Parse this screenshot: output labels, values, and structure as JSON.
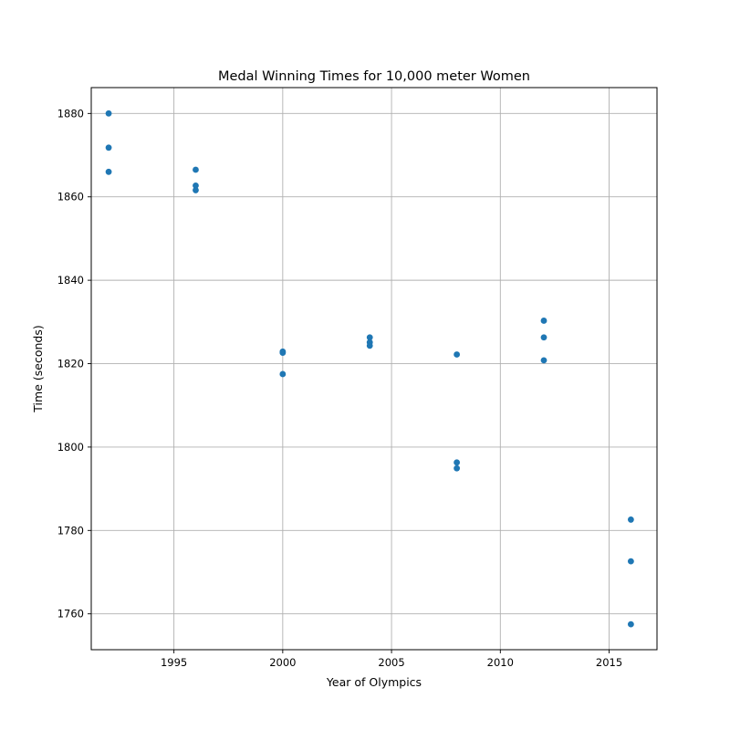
{
  "chart_data": {
    "type": "scatter",
    "title": "Medal Winning Times for 10,000 meter Women",
    "xlabel": "Year of Olympics",
    "ylabel": "Time (seconds)",
    "xlim": [
      1991.2,
      2017.2
    ],
    "ylim": [
      1751.4,
      1886.2
    ],
    "xticks": [
      1995,
      2000,
      2005,
      2010,
      2015
    ],
    "yticks": [
      1760,
      1780,
      1800,
      1820,
      1840,
      1860,
      1880
    ],
    "grid": true,
    "marker_color": "#1f77b4",
    "points": [
      {
        "x": 1992,
        "y": 1880.0
      },
      {
        "x": 1992,
        "y": 1871.8
      },
      {
        "x": 1992,
        "y": 1866.0
      },
      {
        "x": 1996,
        "y": 1866.5
      },
      {
        "x": 1996,
        "y": 1862.7
      },
      {
        "x": 1996,
        "y": 1861.6
      },
      {
        "x": 2000,
        "y": 1822.9
      },
      {
        "x": 2000,
        "y": 1822.6
      },
      {
        "x": 2000,
        "y": 1817.5
      },
      {
        "x": 2004,
        "y": 1826.3
      },
      {
        "x": 2004,
        "y": 1825.1
      },
      {
        "x": 2004,
        "y": 1824.3
      },
      {
        "x": 2008,
        "y": 1822.2
      },
      {
        "x": 2008,
        "y": 1796.3
      },
      {
        "x": 2008,
        "y": 1794.9
      },
      {
        "x": 2012,
        "y": 1830.3
      },
      {
        "x": 2012,
        "y": 1826.3
      },
      {
        "x": 2012,
        "y": 1820.8
      },
      {
        "x": 2016,
        "y": 1782.6
      },
      {
        "x": 2016,
        "y": 1772.6
      },
      {
        "x": 2016,
        "y": 1757.5
      }
    ]
  }
}
